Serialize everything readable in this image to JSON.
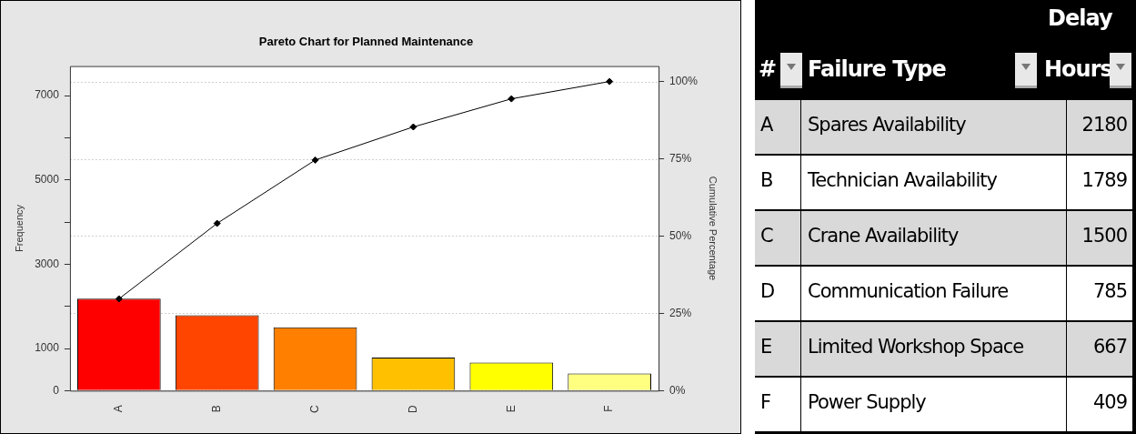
{
  "chart_data": [
    {
      "type": "bar",
      "title": "Pareto Chart for Planned Maintenance",
      "ylabel": "Frequency",
      "y2label": "Cumulative Percentage",
      "categories": [
        "A",
        "B",
        "C",
        "D",
        "E",
        "F"
      ],
      "series": [
        {
          "values": [
            2180,
            1789,
            1500,
            785,
            667,
            409
          ],
          "colors": [
            "#ff0000",
            "#ff4500",
            "#ff8000",
            "#ffc000",
            "#ffff00",
            "#ffff80"
          ]
        },
        {
          "type": "line",
          "axis": "y2",
          "color": "#000000",
          "values": [
            29.7,
            54.1,
            74.6,
            85.3,
            94.4,
            100
          ]
        }
      ],
      "ylim": [
        0,
        7700
      ],
      "yticks": [
        0,
        1000,
        {
          "value": 2000,
          "label": null
        },
        3000,
        {
          "value": 4000,
          "label": null
        },
        5000,
        {
          "value": 6000,
          "label": null
        },
        7000
      ],
      "y2lim": [
        0,
        105
      ],
      "y2ticks": [
        {
          "value": 0,
          "label": "0%"
        },
        {
          "value": 25,
          "label": "25%"
        },
        {
          "value": 50,
          "label": "50%"
        },
        {
          "value": 75,
          "label": "75%"
        },
        {
          "value": 100,
          "label": "100%"
        }
      ],
      "grid": "y",
      "marker": "diamond",
      "legend": false
    },
    {
      "type": "other",
      "annotations": [
        "#",
        "Failure Type",
        "Delay Hours",
        "A",
        "Spares Availability",
        "2180",
        "B",
        "Technician Availability",
        "1789",
        "C",
        "Crane Availability",
        "1500",
        "D",
        "Communication Failure",
        "785",
        "E",
        "Limited Workshop Space",
        "667",
        "F",
        "Power Supply",
        "409"
      ]
    }
  ]
}
